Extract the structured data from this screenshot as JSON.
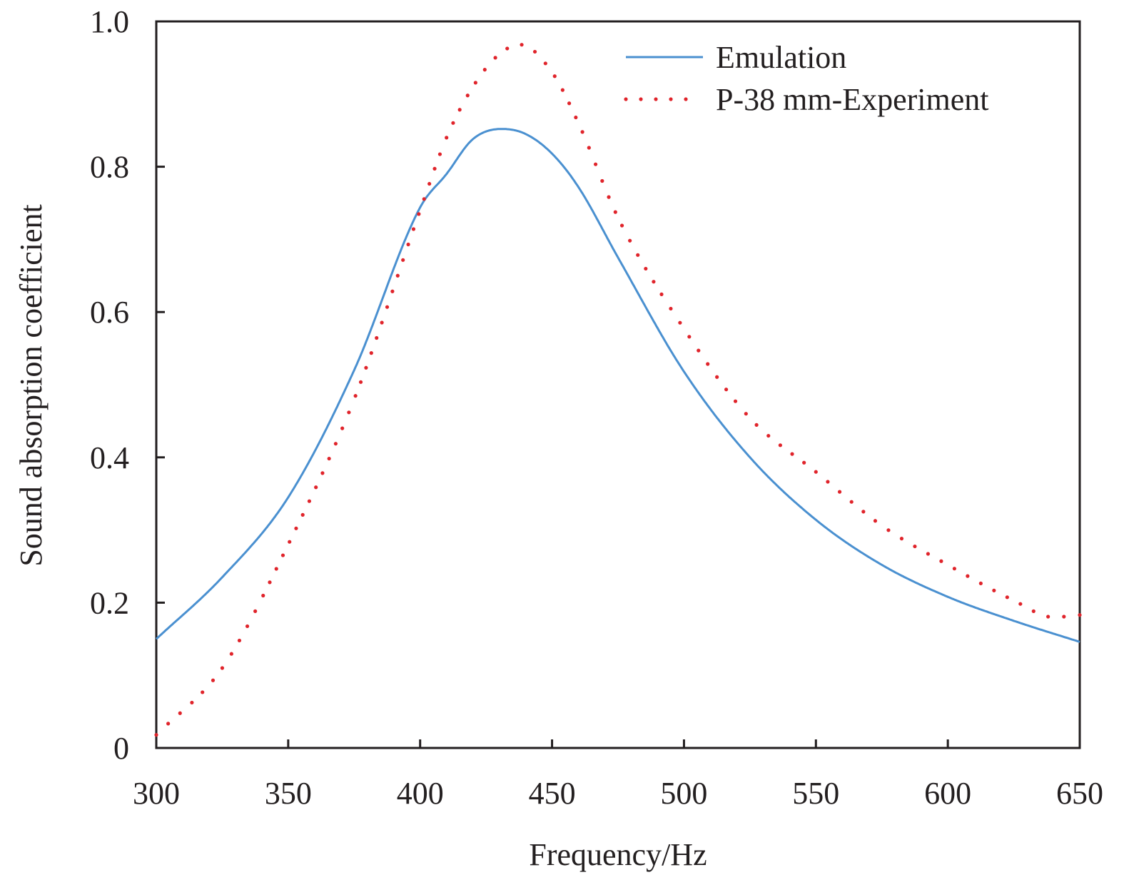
{
  "chart_data": {
    "type": "line",
    "title": "",
    "xlabel": "Frequency/Hz",
    "ylabel": "Sound absorption coefficient",
    "xlim": [
      300,
      650
    ],
    "ylim": [
      0,
      1.0
    ],
    "xticks": [
      "300",
      "350",
      "400",
      "450",
      "500",
      "550",
      "600",
      "650"
    ],
    "yticks": [
      "0",
      "0.2",
      "0.4",
      "0.6",
      "0.8",
      "1.0"
    ],
    "grid": false,
    "legend_position": "top-right",
    "series": [
      {
        "name": "Emulation",
        "style": "solid",
        "color": "#4a90d0",
        "x": [
          300,
          325,
          350,
          375,
          400,
          410,
          420,
          431,
          440,
          450,
          460,
          475,
          500,
          525,
          550,
          575,
          600,
          625,
          650
        ],
        "y": [
          0.15,
          0.235,
          0.345,
          0.52,
          0.744,
          0.79,
          0.838,
          0.852,
          0.845,
          0.818,
          0.772,
          0.675,
          0.518,
          0.4,
          0.314,
          0.252,
          0.208,
          0.175,
          0.146
        ]
      },
      {
        "name": "P-38 mm-Experiment",
        "style": "dotted",
        "color": "#e0242b",
        "x": [
          300,
          325,
          350,
          375,
          400,
          410,
          420,
          430,
          438,
          450,
          460,
          475,
          500,
          525,
          550,
          575,
          600,
          625,
          640,
          650
        ],
        "y": [
          0.018,
          0.11,
          0.28,
          0.48,
          0.74,
          0.84,
          0.91,
          0.955,
          0.968,
          0.93,
          0.86,
          0.73,
          0.577,
          0.454,
          0.38,
          0.306,
          0.252,
          0.203,
          0.18,
          0.183
        ]
      }
    ]
  }
}
